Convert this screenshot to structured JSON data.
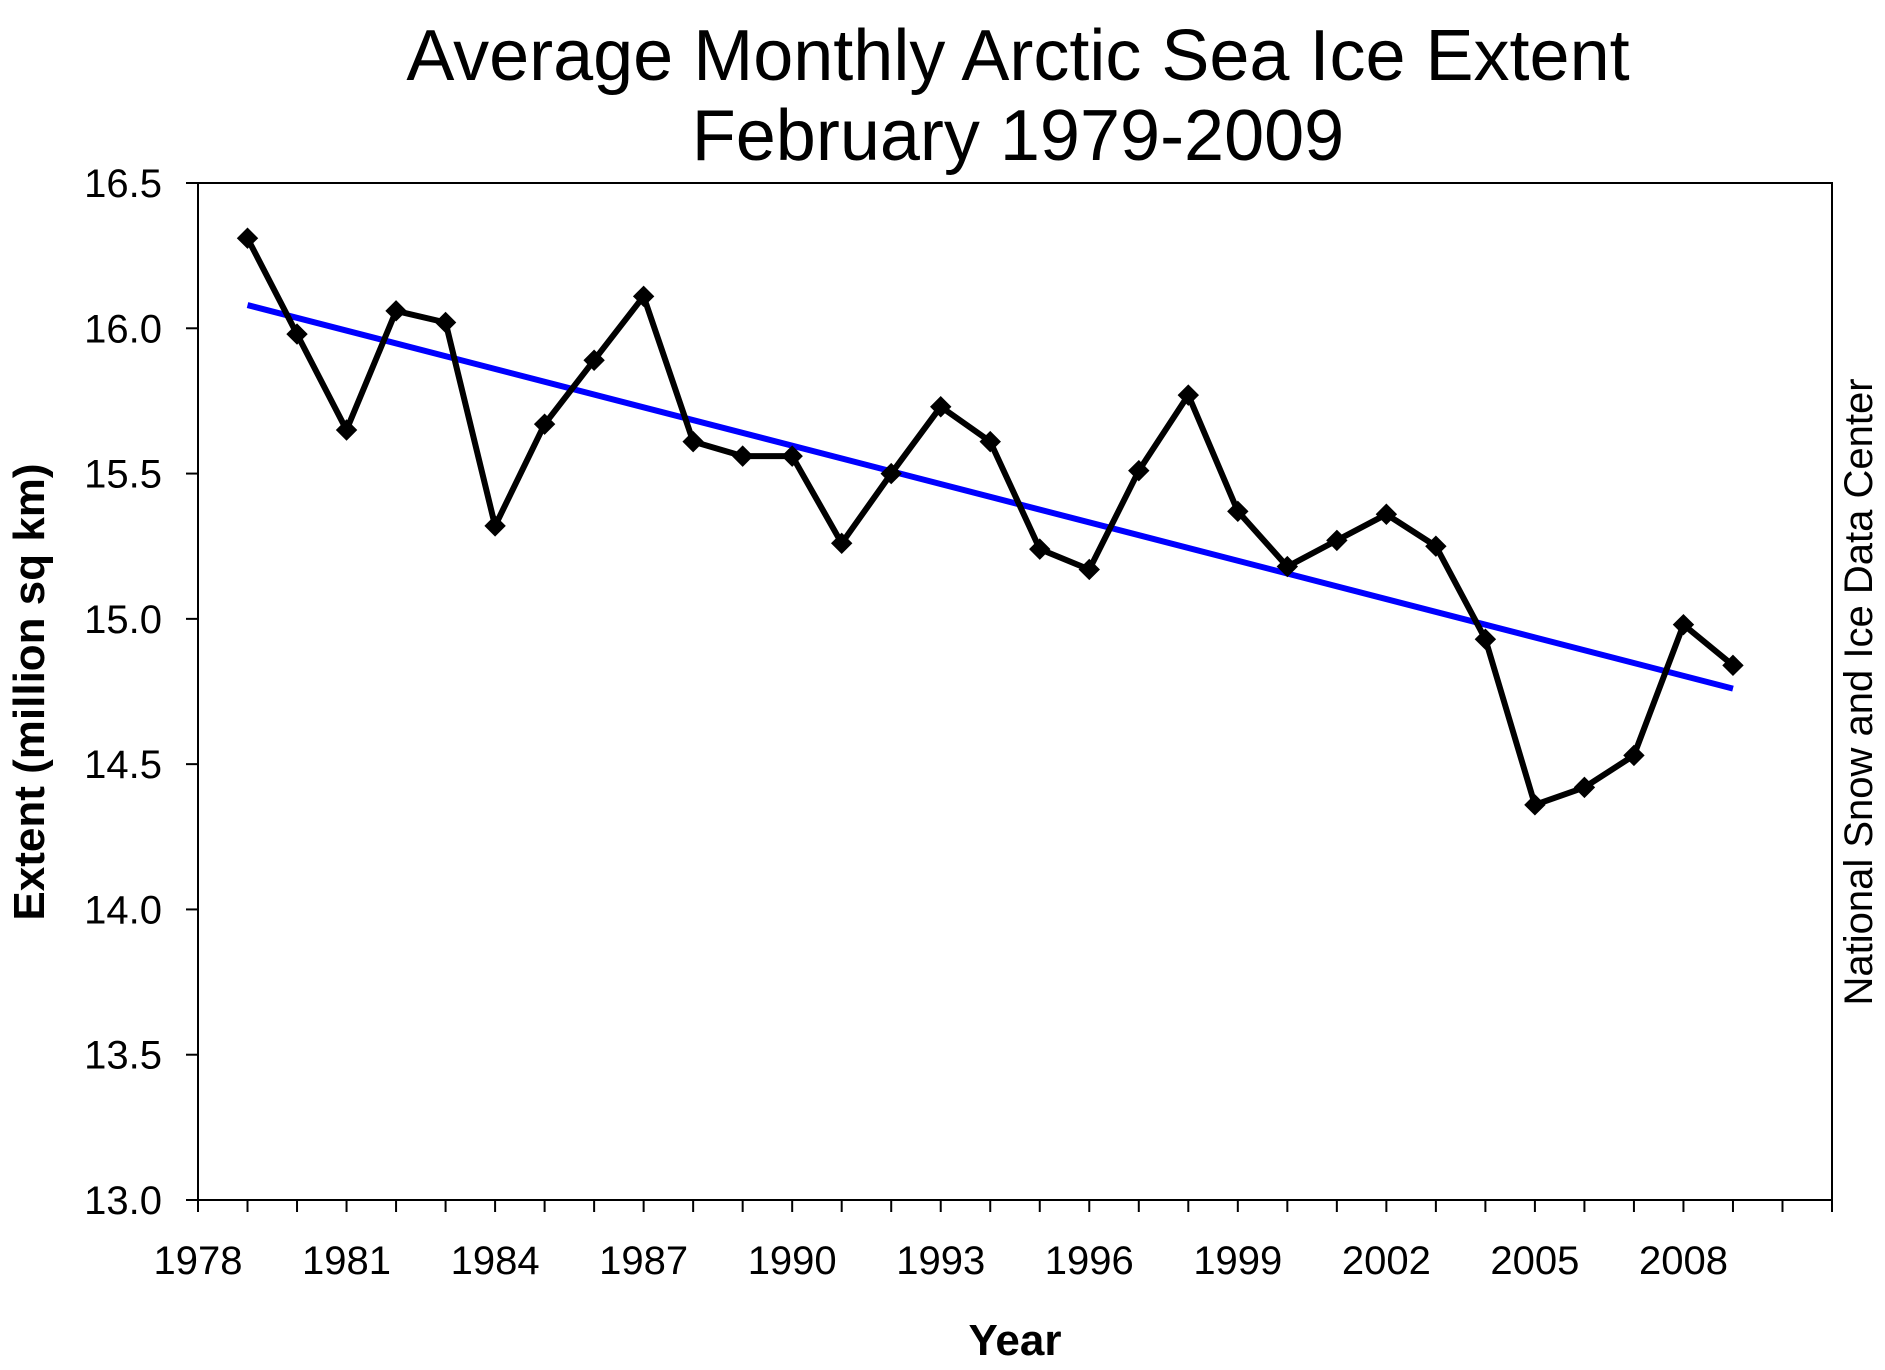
{
  "chart_data": {
    "type": "line",
    "title": "Average Monthly Arctic Sea Ice Extent",
    "subtitle": "February 1979-2009",
    "xlabel": "Year",
    "ylabel": "Extent (million sq km)",
    "credit": "National Snow and Ice Data Center",
    "xlim": [
      1978,
      2011
    ],
    "ylim": [
      13.0,
      16.5
    ],
    "x_ticks": [
      1978,
      1981,
      1984,
      1987,
      1990,
      1993,
      1996,
      1999,
      2002,
      2005,
      2008
    ],
    "y_ticks": [
      "13.0",
      "13.5",
      "14.0",
      "14.5",
      "15.0",
      "15.5",
      "16.0",
      "16.5"
    ],
    "grid": false,
    "series": [
      {
        "type": "line",
        "color": "#000000",
        "marker": "diamond",
        "x": [
          1979,
          1980,
          1981,
          1982,
          1983,
          1984,
          1985,
          1986,
          1987,
          1988,
          1989,
          1990,
          1991,
          1992,
          1993,
          1994,
          1995,
          1996,
          1997,
          1998,
          1999,
          2000,
          2001,
          2002,
          2003,
          2004,
          2005,
          2006,
          2007,
          2008,
          2009
        ],
        "values": [
          16.31,
          15.98,
          15.65,
          16.06,
          16.02,
          15.32,
          15.67,
          15.89,
          16.11,
          15.61,
          15.56,
          15.56,
          15.26,
          15.5,
          15.73,
          15.61,
          15.24,
          15.17,
          15.51,
          15.77,
          15.37,
          15.18,
          15.27,
          15.36,
          15.25,
          14.93,
          14.36,
          14.42,
          14.53,
          14.98,
          14.84
        ]
      },
      {
        "type": "trend",
        "color": "#0000ff",
        "x": [
          1979,
          2009
        ],
        "values": [
          16.08,
          14.76
        ]
      }
    ]
  }
}
